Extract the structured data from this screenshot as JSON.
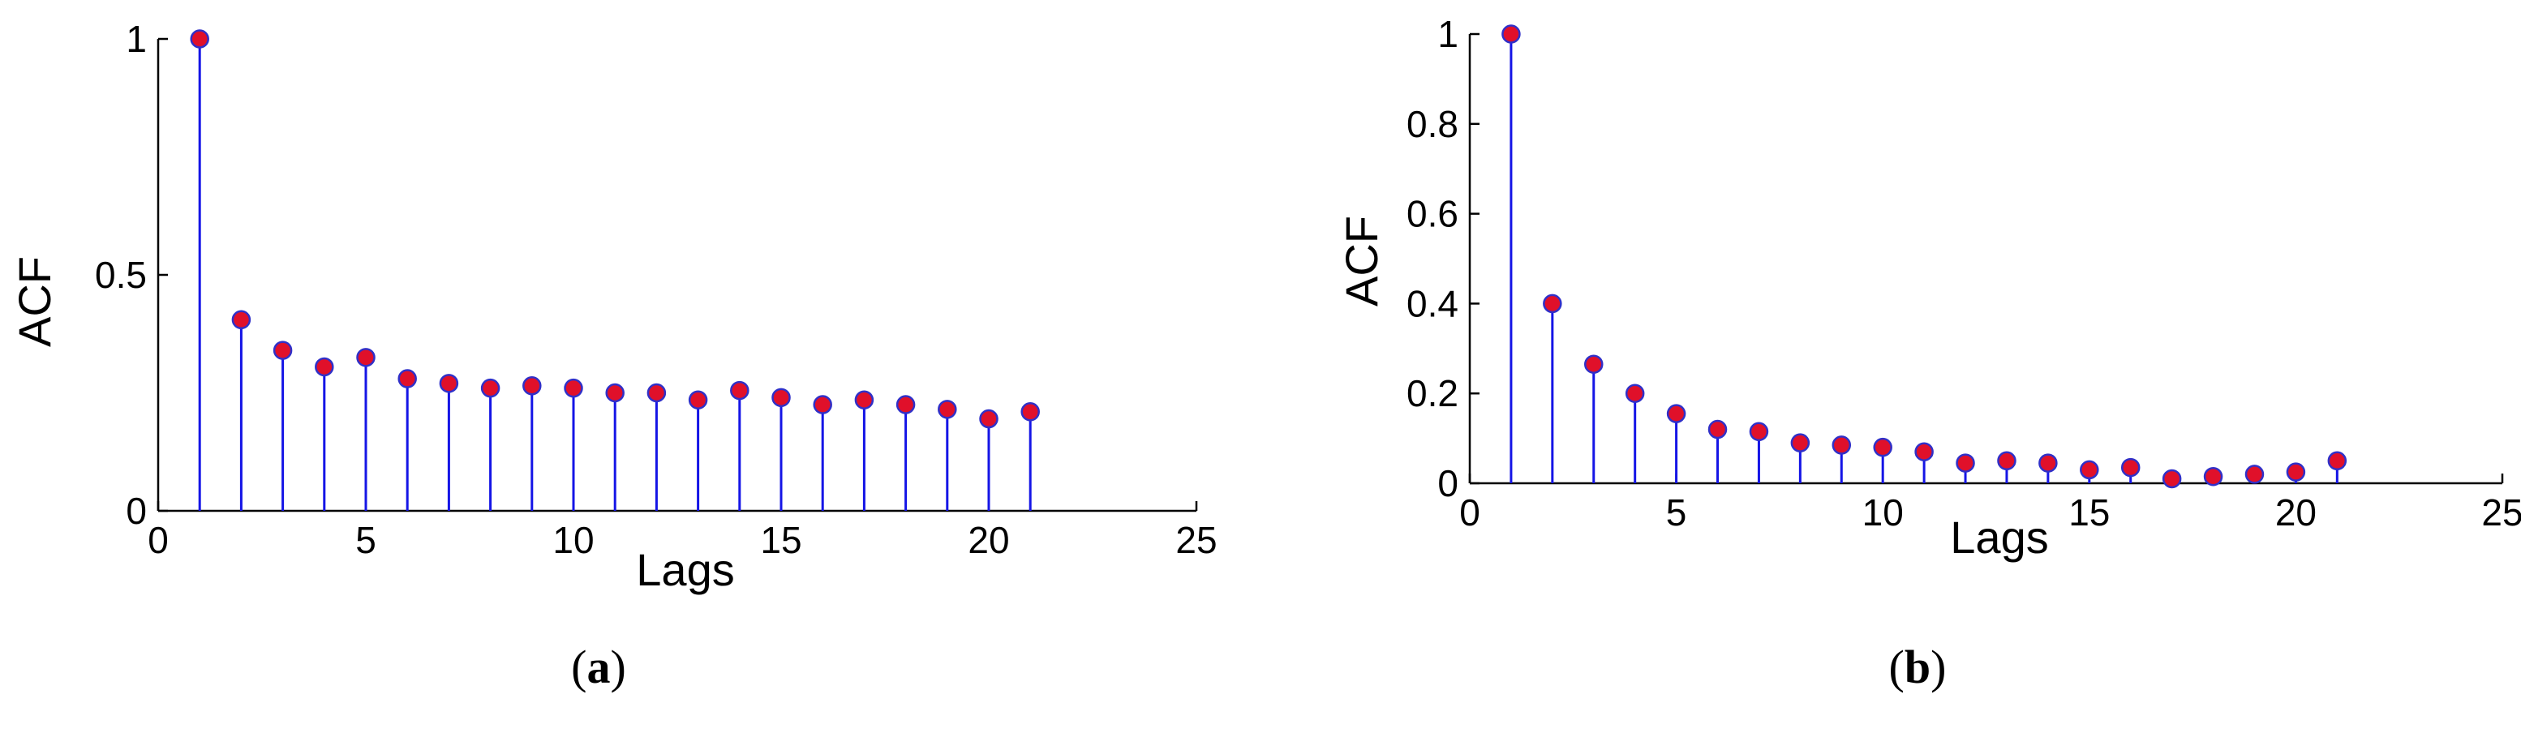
{
  "colors": {
    "stem": "#1515e6",
    "marker_fill": "#e0102a",
    "marker_edge": "#3030c8",
    "axis": "#000000"
  },
  "chart_data": [
    {
      "type": "stem",
      "caption": {
        "open": "(",
        "letter": "a",
        "close": ")"
      },
      "xlabel": "Lags",
      "ylabel": "ACF",
      "xlim": [
        0,
        25
      ],
      "ylim": [
        0,
        1
      ],
      "xticks": [
        "0",
        "5",
        "10",
        "15",
        "20",
        "25"
      ],
      "xtick_values": [
        0,
        5,
        10,
        15,
        20,
        25
      ],
      "yticks": [
        "0",
        "0.5",
        "1"
      ],
      "ytick_values": [
        0,
        0.5,
        1
      ],
      "grid": false,
      "series": [
        {
          "x": [
            1,
            2,
            3,
            4,
            5,
            6,
            7,
            8,
            9,
            10,
            11,
            12,
            13,
            14,
            15,
            16,
            17,
            18,
            19,
            20,
            21
          ],
          "values": [
            1.0,
            0.405,
            0.34,
            0.305,
            0.325,
            0.28,
            0.27,
            0.26,
            0.265,
            0.26,
            0.25,
            0.25,
            0.235,
            0.255,
            0.24,
            0.225,
            0.235,
            0.225,
            0.215,
            0.195,
            0.21
          ]
        }
      ]
    },
    {
      "type": "stem",
      "caption": {
        "open": "(",
        "letter": "b",
        "close": ")"
      },
      "xlabel": "Lags",
      "ylabel": "ACF",
      "xlim": [
        0,
        25
      ],
      "ylim": [
        0,
        1
      ],
      "xticks": [
        "0",
        "5",
        "10",
        "15",
        "20",
        "25"
      ],
      "xtick_values": [
        0,
        5,
        10,
        15,
        20,
        25
      ],
      "yticks": [
        "0",
        "0.2",
        "0.4",
        "0.6",
        "0.8",
        "1"
      ],
      "ytick_values": [
        0,
        0.2,
        0.4,
        0.6,
        0.8,
        1
      ],
      "grid": false,
      "series": [
        {
          "x": [
            1,
            2,
            3,
            4,
            5,
            6,
            7,
            8,
            9,
            10,
            11,
            12,
            13,
            14,
            15,
            16,
            17,
            18,
            19,
            20,
            21
          ],
          "values": [
            1.0,
            0.4,
            0.265,
            0.2,
            0.155,
            0.12,
            0.115,
            0.09,
            0.085,
            0.08,
            0.07,
            0.045,
            0.05,
            0.045,
            0.03,
            0.035,
            0.01,
            0.015,
            0.02,
            0.025,
            0.05
          ]
        }
      ]
    }
  ]
}
